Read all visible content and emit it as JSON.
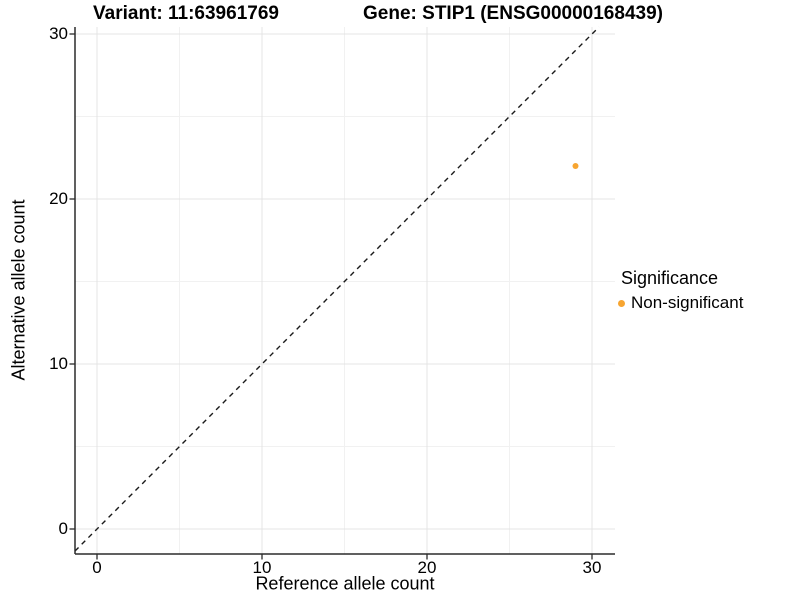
{
  "titles": {
    "variant": "Variant: 11:63961769",
    "gene": "Gene: STIP1 (ENSG00000168439)"
  },
  "chart_data": {
    "type": "scatter",
    "title_left": "Variant: 11:63961769",
    "title_right": "Gene: STIP1 (ENSG00000168439)",
    "xlabel": "Reference allele count",
    "ylabel": "Alternative allele count",
    "xlim": [
      -1.3,
      31.4
    ],
    "ylim": [
      -1.5,
      30.4
    ],
    "x_ticks": [
      0,
      10,
      20,
      30
    ],
    "y_ticks": [
      0,
      10,
      20,
      30
    ],
    "x_minor_ticks": [
      5,
      15,
      25
    ],
    "y_minor_ticks": [
      5,
      15,
      25
    ],
    "grid": true,
    "reference_line": {
      "equation": "y = x",
      "style": "dashed",
      "color": "#1a1a1a"
    },
    "series": [
      {
        "name": "Non-significant",
        "color": "#F7A531",
        "points": [
          {
            "x": 29,
            "y": 22
          }
        ]
      }
    ],
    "legend": {
      "title": "Significance",
      "position": "right",
      "items": [
        {
          "label": "Non-significant",
          "color": "#F7A531"
        }
      ]
    },
    "colors": {
      "axis_line": "#2b2b2b",
      "grid_major": "#e4e4e4",
      "grid_minor": "#f1f1f1",
      "background": "#ffffff"
    }
  }
}
